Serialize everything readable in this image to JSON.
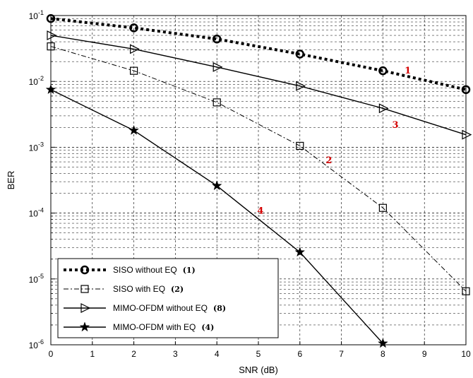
{
  "chart_data": {
    "type": "line",
    "title": "",
    "xlabel": "SNR (dB)",
    "ylabel": "BER",
    "xlim": [
      0,
      10
    ],
    "ylim": [
      1e-06,
      0.1
    ],
    "yscale": "log",
    "grid": true,
    "legend_position": "bottom-left",
    "x_ticks": [
      "0",
      "1",
      "2",
      "3",
      "4",
      "5",
      "6",
      "7",
      "8",
      "9",
      "10"
    ],
    "y_ticks": [
      {
        "base": "10",
        "exp": "-1",
        "value": 0.1
      },
      {
        "base": "10",
        "exp": "-2",
        "value": 0.01
      },
      {
        "base": "10",
        "exp": "-3",
        "value": 0.001
      },
      {
        "base": "10",
        "exp": "-4",
        "value": 0.0001
      },
      {
        "base": "10",
        "exp": "-5",
        "value": 1e-05
      },
      {
        "base": "10",
        "exp": "-6",
        "value": 1e-06
      }
    ],
    "series": [
      {
        "name": "SISO without EQ",
        "tag": "(1)",
        "annotation": "1",
        "marker": "circle",
        "line_style": "dotted-bold",
        "x": [
          0,
          2,
          4,
          6,
          8,
          10
        ],
        "y": [
          0.09,
          0.065,
          0.044,
          0.026,
          0.0145,
          0.0075
        ]
      },
      {
        "name": "SISO with EQ",
        "tag": "(2)",
        "annotation": "2",
        "marker": "square",
        "line_style": "dash-dot",
        "x": [
          0,
          2,
          4,
          6,
          8,
          10
        ],
        "y": [
          0.034,
          0.0145,
          0.0048,
          0.00105,
          0.00012,
          6.5e-06
        ]
      },
      {
        "name": "MIMO-OFDM without EQ",
        "tag": "(8)",
        "annotation": "3",
        "marker": "triangle-right",
        "line_style": "solid",
        "x": [
          0,
          2,
          4,
          6,
          8,
          10
        ],
        "y": [
          0.05,
          0.031,
          0.0165,
          0.0085,
          0.0039,
          0.00155
        ]
      },
      {
        "name": "MIMO-OFDM with EQ",
        "tag": "(4)",
        "annotation": "4",
        "marker": "star",
        "line_style": "solid",
        "x": [
          0,
          2,
          4,
          6,
          8
        ],
        "y": [
          0.0075,
          0.0018,
          0.00026,
          2.55e-05,
          1.05e-06
        ]
      }
    ]
  }
}
